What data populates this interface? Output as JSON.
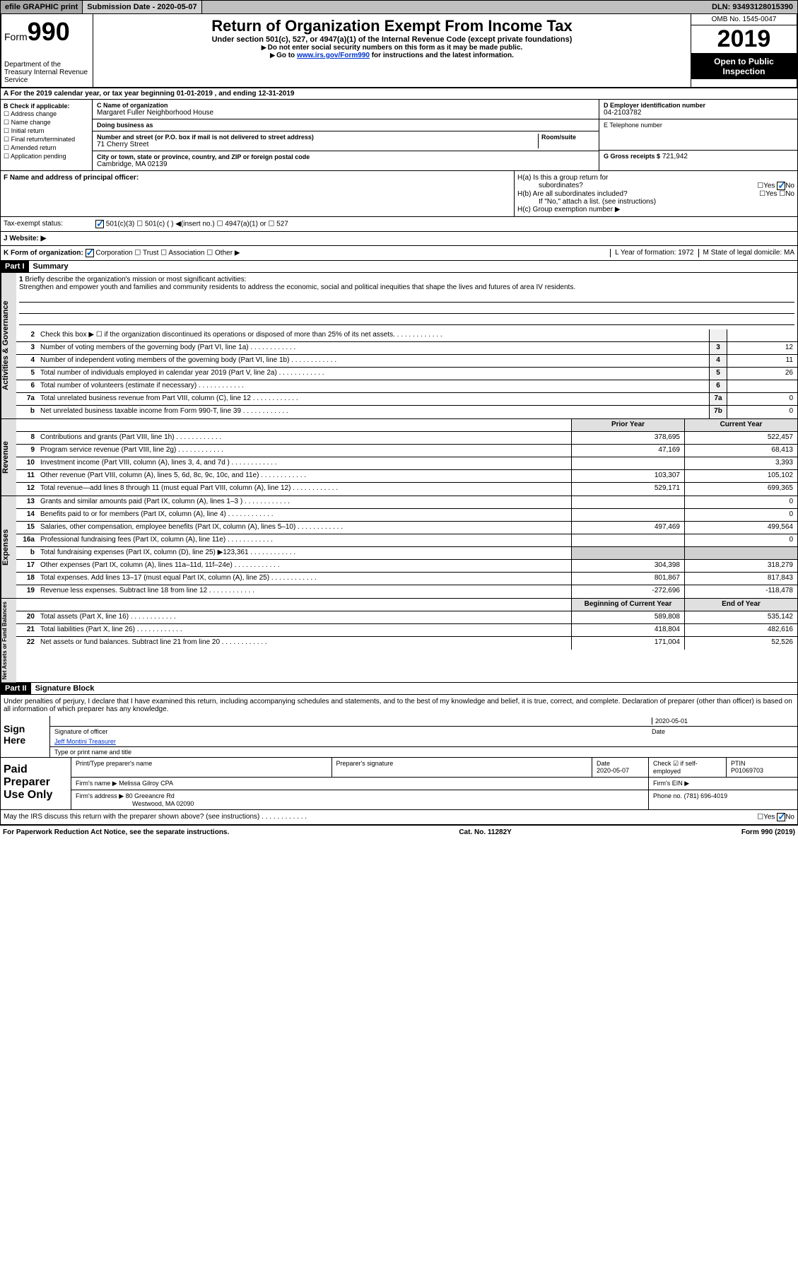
{
  "topbar": {
    "efile": "efile GRAPHIC print",
    "subdate_label": "Submission Date - 2020-05-07",
    "dln": "DLN: 93493128015390"
  },
  "header": {
    "form_word": "Form",
    "form_num": "990",
    "dept": "Department of the Treasury\nInternal Revenue Service",
    "title": "Return of Organization Exempt From Income Tax",
    "sub": "Under section 501(c), 527, or 4947(a)(1) of the Internal Revenue Code (except private foundations)",
    "note1": "Do not enter social security numbers on this form as it may be made public.",
    "note2_pre": "Go to ",
    "note2_link": "www.irs.gov/Form990",
    "note2_post": " for instructions and the latest information.",
    "omb": "OMB No. 1545-0047",
    "year": "2019",
    "inspect": "Open to Public Inspection"
  },
  "rowA": "A For the 2019 calendar year, or tax year beginning 01-01-2019   , and ending 12-31-2019",
  "B": {
    "label": "B Check if applicable:",
    "opts": [
      "Address change",
      "Name change",
      "Initial return",
      "Final return/terminated",
      "Amended return",
      "Application pending"
    ]
  },
  "C": {
    "name_label": "C Name of organization",
    "name": "Margaret Fuller Neighborhood House",
    "dba_label": "Doing business as",
    "addr_label": "Number and street (or P.O. box if mail is not delivered to street address)",
    "room_label": "Room/suite",
    "addr": "71 Cherry Street",
    "city_label": "City or town, state or province, country, and ZIP or foreign postal code",
    "city": "Cambridge, MA  02139"
  },
  "D": {
    "ein_label": "D Employer identification number",
    "ein": "04-2103782",
    "tel_label": "E Telephone number",
    "gross_label": "G Gross receipts $",
    "gross": "721,942"
  },
  "F": {
    "label": "F  Name and address of principal officer:"
  },
  "H": {
    "a": "H(a)  Is this a group return for",
    "a2": "subordinates?",
    "b": "H(b)  Are all subordinates included?",
    "b2": "If \"No,\" attach a list. (see instructions)",
    "c": "H(c)  Group exemption number ▶",
    "yes": "Yes",
    "no": "No"
  },
  "tax_status": {
    "label": "Tax-exempt status:",
    "opts": [
      "501(c)(3)",
      "501(c) (  ) ◀(insert no.)",
      "4947(a)(1) or",
      "527"
    ]
  },
  "J": {
    "label": "J   Website: ▶"
  },
  "K": {
    "label": "K Form of organization:",
    "opts": [
      "Corporation",
      "Trust",
      "Association",
      "Other ▶"
    ],
    "L": "L Year of formation: 1972",
    "M": "M State of legal domicile: MA"
  },
  "part1": {
    "hdr": "Part I",
    "title": "Summary"
  },
  "mission": {
    "num": "1",
    "label": "Briefly describe the organization's mission or most significant activities:",
    "text": "Strengthen and empower youth and families and community residents to address the economic, social and political inequities that shape the lives and futures of area IV residents."
  },
  "summary_rows": [
    {
      "n": "2",
      "t": "Check this box ▶ ☐  if the organization discontinued its operations or disposed of more than 25% of its net assets.",
      "box": "",
      "v": ""
    },
    {
      "n": "3",
      "t": "Number of voting members of the governing body (Part VI, line 1a)",
      "box": "3",
      "v": "12"
    },
    {
      "n": "4",
      "t": "Number of independent voting members of the governing body (Part VI, line 1b)",
      "box": "4",
      "v": "11"
    },
    {
      "n": "5",
      "t": "Total number of individuals employed in calendar year 2019 (Part V, line 2a)",
      "box": "5",
      "v": "26"
    },
    {
      "n": "6",
      "t": "Total number of volunteers (estimate if necessary)",
      "box": "6",
      "v": ""
    },
    {
      "n": "7a",
      "t": "Total unrelated business revenue from Part VIII, column (C), line 12",
      "box": "7a",
      "v": "0"
    },
    {
      "n": "b",
      "t": "Net unrelated business taxable income from Form 990-T, line 39",
      "box": "7b",
      "v": "0"
    }
  ],
  "two_col_hdr": {
    "prior": "Prior Year",
    "current": "Current Year"
  },
  "revenue": [
    {
      "n": "8",
      "t": "Contributions and grants (Part VIII, line 1h)",
      "p": "378,695",
      "c": "522,457"
    },
    {
      "n": "9",
      "t": "Program service revenue (Part VIII, line 2g)",
      "p": "47,169",
      "c": "68,413"
    },
    {
      "n": "10",
      "t": "Investment income (Part VIII, column (A), lines 3, 4, and 7d )",
      "p": "",
      "c": "3,393"
    },
    {
      "n": "11",
      "t": "Other revenue (Part VIII, column (A), lines 5, 6d, 8c, 9c, 10c, and 11e)",
      "p": "103,307",
      "c": "105,102"
    },
    {
      "n": "12",
      "t": "Total revenue—add lines 8 through 11 (must equal Part VIII, column (A), line 12)",
      "p": "529,171",
      "c": "699,365"
    }
  ],
  "expenses": [
    {
      "n": "13",
      "t": "Grants and similar amounts paid (Part IX, column (A), lines 1–3 )",
      "p": "",
      "c": "0"
    },
    {
      "n": "14",
      "t": "Benefits paid to or for members (Part IX, column (A), line 4)",
      "p": "",
      "c": "0"
    },
    {
      "n": "15",
      "t": "Salaries, other compensation, employee benefits (Part IX, column (A), lines 5–10)",
      "p": "497,469",
      "c": "499,564"
    },
    {
      "n": "16a",
      "t": "Professional fundraising fees (Part IX, column (A), line 11e)",
      "p": "",
      "c": "0"
    },
    {
      "n": "b",
      "t": "Total fundraising expenses (Part IX, column (D), line 25) ▶123,361",
      "p": "shaded",
      "c": "shaded"
    },
    {
      "n": "17",
      "t": "Other expenses (Part IX, column (A), lines 11a–11d, 11f–24e)",
      "p": "304,398",
      "c": "318,279"
    },
    {
      "n": "18",
      "t": "Total expenses. Add lines 13–17 (must equal Part IX, column (A), line 25)",
      "p": "801,867",
      "c": "817,843"
    },
    {
      "n": "19",
      "t": "Revenue less expenses. Subtract line 18 from line 12",
      "p": "-272,696",
      "c": "-118,478"
    }
  ],
  "netassets_hdr": {
    "b": "Beginning of Current Year",
    "e": "End of Year"
  },
  "netassets": [
    {
      "n": "20",
      "t": "Total assets (Part X, line 16)",
      "p": "589,808",
      "c": "535,142"
    },
    {
      "n": "21",
      "t": "Total liabilities (Part X, line 26)",
      "p": "418,804",
      "c": "482,616"
    },
    {
      "n": "22",
      "t": "Net assets or fund balances. Subtract line 21 from line 20",
      "p": "171,004",
      "c": "52,526"
    }
  ],
  "part2": {
    "hdr": "Part II",
    "title": "Signature Block"
  },
  "sig": {
    "decl": "Under penalties of perjury, I declare that I have examined this return, including accompanying schedules and statements, and to the best of my knowledge and belief, it is true, correct, and complete. Declaration of preparer (other than officer) is based on all information of which preparer has any knowledge.",
    "sign_here": "Sign Here",
    "sig_officer": "Signature of officer",
    "date": "2020-05-01",
    "date_label": "Date",
    "name": "Jeff Montini  Treasurer",
    "name_label": "Type or print name and title"
  },
  "prep": {
    "label": "Paid Preparer Use Only",
    "h1": "Print/Type preparer's name",
    "h2": "Preparer's signature",
    "h3": "Date",
    "h3v": "2020-05-07",
    "h4": "Check ☑ if self-employed",
    "h5": "PTIN",
    "h5v": "P01069703",
    "firm_label": "Firm's name   ▶",
    "firm": "Melissa Gilroy CPA",
    "fein_label": "Firm's EIN ▶",
    "addr_label": "Firm's address ▶",
    "addr1": "80 Greeancre Rd",
    "addr2": "Westwood, MA  02090",
    "phone_label": "Phone no.",
    "phone": "(781) 696-4019",
    "discuss": "May the IRS discuss this return with the preparer shown above? (see instructions)"
  },
  "footer": {
    "left": "For Paperwork Reduction Act Notice, see the separate instructions.",
    "mid": "Cat. No. 11282Y",
    "right": "Form 990 (2019)"
  },
  "sidelabels": {
    "gov": "Activities & Governance",
    "rev": "Revenue",
    "exp": "Expenses",
    "net": "Net Assets or Fund Balances"
  }
}
